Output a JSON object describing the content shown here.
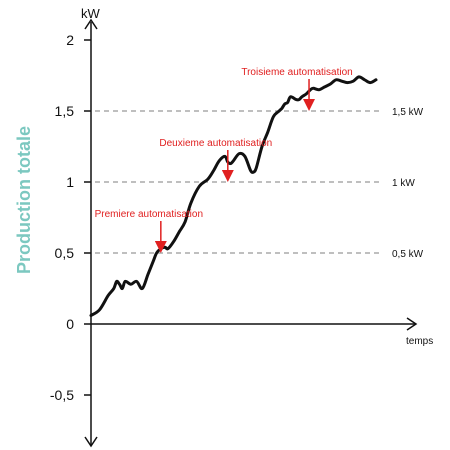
{
  "chart_data": {
    "type": "line",
    "title": "",
    "ylabel": "Production totale",
    "yunit": "kW",
    "xlabel": "temps",
    "ylim": [
      -0.85,
      2.1
    ],
    "y_ticks": [
      {
        "value": 2,
        "label": "2"
      },
      {
        "value": 1.5,
        "label": "1,5"
      },
      {
        "value": 1,
        "label": "1"
      },
      {
        "value": 0.5,
        "label": "0,5"
      },
      {
        "value": 0,
        "label": "0"
      },
      {
        "value": -0.5,
        "label": "-0,5"
      }
    ],
    "reference_lines": [
      {
        "value": 1.5,
        "label": "1,5 kW"
      },
      {
        "value": 1,
        "label": "1 kW"
      },
      {
        "value": 0.5,
        "label": "0,5 kW"
      }
    ],
    "series": [
      {
        "color": "#111111",
        "x": [
          0,
          0.03,
          0.06,
          0.08,
          0.09,
          0.1,
          0.11,
          0.12,
          0.14,
          0.16,
          0.18,
          0.2,
          0.22,
          0.23,
          0.245,
          0.26,
          0.27,
          0.29,
          0.31,
          0.33,
          0.35,
          0.38,
          0.41,
          0.43,
          0.45,
          0.47,
          0.48,
          0.49,
          0.5,
          0.52,
          0.54,
          0.56,
          0.57,
          0.58,
          0.6,
          0.62,
          0.64,
          0.66,
          0.67,
          0.68,
          0.69,
          0.7,
          0.72,
          0.73,
          0.74,
          0.755,
          0.77,
          0.78,
          0.8,
          0.82,
          0.84,
          0.86,
          0.88,
          0.9,
          0.92,
          0.94,
          0.96,
          0.98,
          1.0
        ],
        "values": [
          0.06,
          0.1,
          0.2,
          0.25,
          0.3,
          0.28,
          0.25,
          0.3,
          0.28,
          0.3,
          0.25,
          0.35,
          0.45,
          0.5,
          0.53,
          0.54,
          0.53,
          0.58,
          0.65,
          0.72,
          0.85,
          0.97,
          1.02,
          1.08,
          1.15,
          1.18,
          1.14,
          1.13,
          1.15,
          1.2,
          1.18,
          1.08,
          1.07,
          1.1,
          1.25,
          1.35,
          1.46,
          1.5,
          1.52,
          1.55,
          1.56,
          1.6,
          1.58,
          1.58,
          1.6,
          1.62,
          1.65,
          1.66,
          1.65,
          1.67,
          1.69,
          1.72,
          1.71,
          1.7,
          1.71,
          1.74,
          1.72,
          1.7,
          1.72
        ]
      }
    ],
    "annotations": [
      {
        "label": "Premiere automatisation",
        "x": 0.245,
        "y": 0.5
      },
      {
        "label": "Deuxieme automatisation",
        "x": 0.48,
        "y": 1.0
      },
      {
        "label": "Troisieme automatisation",
        "x": 0.765,
        "y": 1.5
      }
    ],
    "grid": false,
    "colors": {
      "line": "#111111",
      "annotation": "#e02020",
      "ylabel": "#7cc8c0",
      "reference": "#999999"
    }
  }
}
